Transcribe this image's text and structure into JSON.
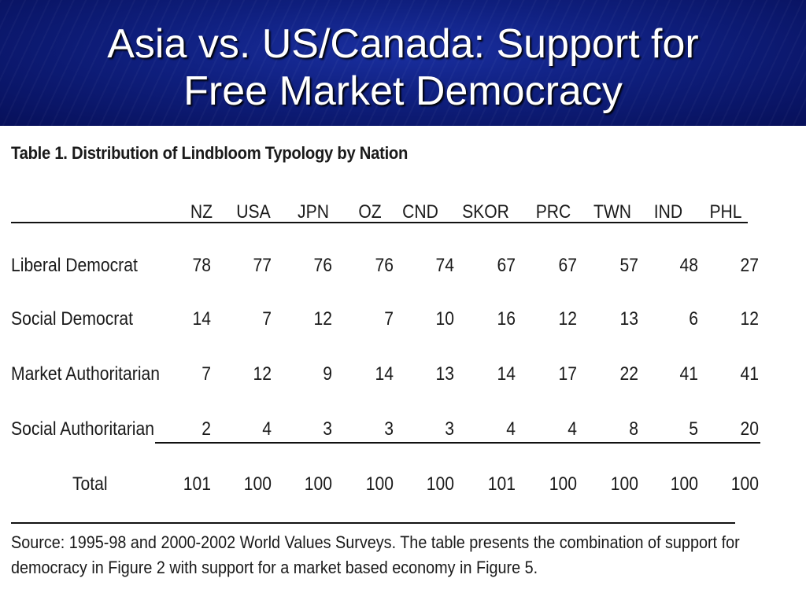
{
  "title": {
    "line1": "Asia vs. US/Canada: Support for",
    "line2": "Free Market Democracy"
  },
  "table": {
    "caption": "Table 1.   Distribution of Lindbloom Typology by Nation",
    "columns": [
      "NZ",
      "USA",
      "JPN",
      "OZ",
      "CND",
      "SKOR",
      "PRC",
      "TWN",
      "IND",
      "PHL"
    ],
    "rows": [
      {
        "label": "Liberal Democrat",
        "values": [
          "78",
          "77",
          "76",
          "76",
          "74",
          "67",
          "67",
          "57",
          "48",
          "27"
        ]
      },
      {
        "label": "Social Democrat",
        "values": [
          "14",
          "7",
          "12",
          "7",
          "10",
          "16",
          "12",
          "13",
          "6",
          "12"
        ]
      },
      {
        "label": "Market Authoritarian",
        "values": [
          "7",
          "12",
          "9",
          "14",
          "13",
          "14",
          "17",
          "22",
          "41",
          "41"
        ]
      },
      {
        "label": "Social Authoritarian",
        "values": [
          "2",
          "4",
          "3",
          "3",
          "3",
          "4",
          "4",
          "8",
          "5",
          "20"
        ]
      }
    ],
    "total": {
      "label": "Total",
      "values": [
        "101",
        "100",
        "100",
        "100",
        "100",
        "101",
        "100",
        "100",
        "100",
        "100"
      ]
    }
  },
  "source": {
    "line1": "Source: 1995-98 and 2000-2002 World Values Surveys.  The table presents the combination of support for",
    "line2": "democracy in Figure 2 with support for a market based economy in Figure 5."
  }
}
